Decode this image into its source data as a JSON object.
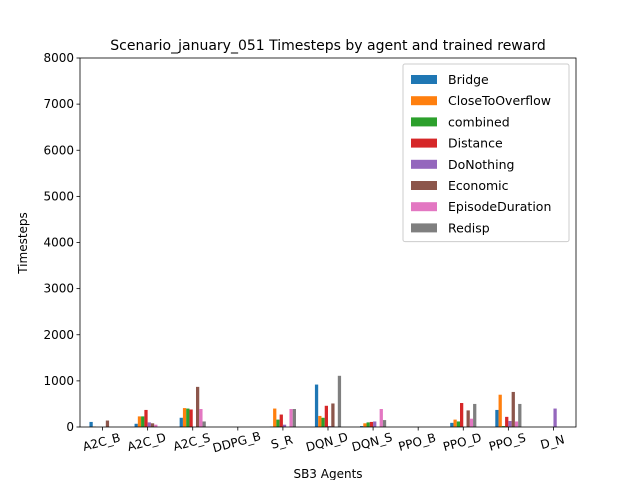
{
  "chart_data": {
    "type": "bar",
    "title": "Scenario_january_051 Timesteps by agent and trained reward",
    "xlabel": "SB3 Agents",
    "ylabel": "Timesteps",
    "ylim": [
      0,
      8000
    ],
    "yticks": [
      0,
      1000,
      2000,
      3000,
      4000,
      5000,
      6000,
      7000,
      8000
    ],
    "legend_position": "top-right",
    "categories": [
      "A2C_B",
      "A2C_D",
      "A2C_S",
      "DDPG_B",
      "S_R",
      "DQN_D",
      "DQN_S",
      "PPO_B",
      "PPO_D",
      "PPO_S",
      "D_N"
    ],
    "series": [
      {
        "name": "Bridge",
        "color": "#1f77b4",
        "values": [
          110,
          70,
          200,
          0,
          10,
          920,
          20,
          0,
          90,
          370,
          0
        ]
      },
      {
        "name": "CloseToOverflow",
        "color": "#ff7f0e",
        "values": [
          10,
          230,
          410,
          0,
          400,
          240,
          80,
          0,
          160,
          700,
          0
        ]
      },
      {
        "name": "combined",
        "color": "#2ca02c",
        "values": [
          0,
          230,
          400,
          0,
          160,
          200,
          100,
          0,
          120,
          20,
          0
        ]
      },
      {
        "name": "Distance",
        "color": "#d62728",
        "values": [
          0,
          370,
          380,
          0,
          270,
          460,
          110,
          0,
          520,
          220,
          0
        ]
      },
      {
        "name": "DoNothing",
        "color": "#9467bd",
        "values": [
          0,
          100,
          0,
          0,
          50,
          20,
          120,
          0,
          0,
          130,
          400
        ]
      },
      {
        "name": "Economic",
        "color": "#8c564b",
        "values": [
          140,
          80,
          870,
          0,
          0,
          510,
          0,
          0,
          360,
          760,
          0
        ]
      },
      {
        "name": "EpisodeDuration",
        "color": "#e377c2",
        "values": [
          0,
          50,
          390,
          0,
          390,
          0,
          390,
          0,
          180,
          120,
          0
        ]
      },
      {
        "name": "Redisp",
        "color": "#7f7f7f",
        "values": [
          0,
          0,
          120,
          0,
          390,
          1110,
          150,
          0,
          500,
          500,
          0
        ]
      }
    ]
  }
}
